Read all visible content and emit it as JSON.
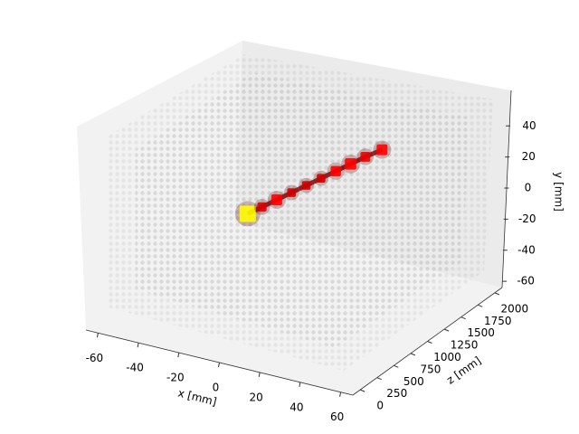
{
  "chart_data": {
    "type": "scatter3d",
    "xlabel": "x [mm]",
    "ylabel": "y [mm]",
    "zlabel": "z [mm]",
    "xlim": [
      -66,
      66
    ],
    "ylim": [
      -64,
      64
    ],
    "zlim": [
      -110,
      2110
    ],
    "xticks": [
      -60,
      -40,
      -20,
      0,
      20,
      40,
      60
    ],
    "yticks": [
      -60,
      -40,
      -20,
      0,
      20,
      40
    ],
    "zticks": [
      0,
      250,
      500,
      750,
      1000,
      1250,
      1500,
      1750,
      2000
    ],
    "cmap": "hot",
    "x": [
      0,
      1,
      2,
      3,
      4,
      5,
      6,
      7,
      8,
      9
    ],
    "y": [
      20,
      19,
      18,
      17,
      16,
      15,
      14,
      13,
      12,
      10
    ],
    "z": [
      267,
      450,
      640,
      830,
      1020,
      1210,
      1400,
      1590,
      1780,
      2000
    ],
    "intensity": [
      1.0,
      0.35,
      0.5,
      0.3,
      0.3,
      0.3,
      0.45,
      0.55,
      0.4,
      0.5
    ]
  }
}
